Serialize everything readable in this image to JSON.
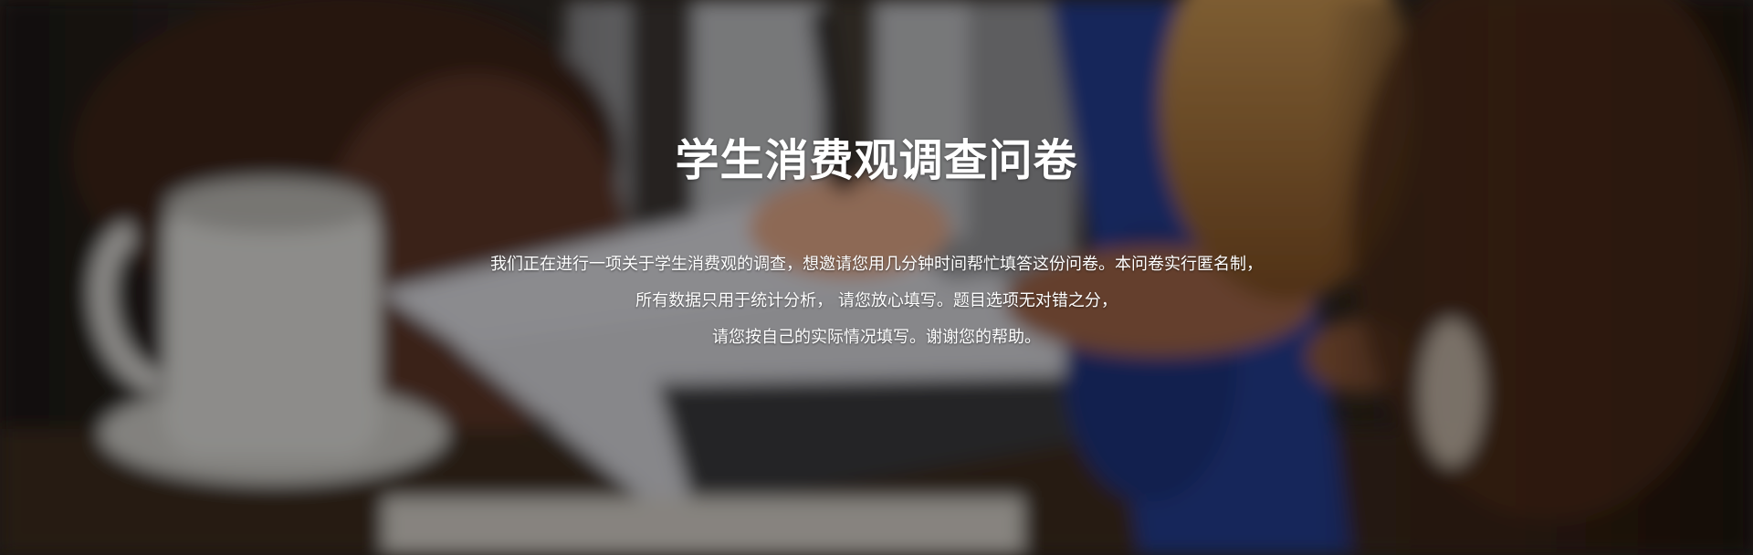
{
  "hero": {
    "title": "学生消费观调查问卷",
    "description_lines": [
      "我们正在进行一项关于学生消费观的调查，想邀请您用几分钟时间帮忙填答这份问卷。本问卷实行匿名制，",
      "所有数据只用于统计分析， 请您放心填写。题目选项无对错之分，",
      "请您按自己的实际情况填写。谢谢您的帮助。"
    ]
  },
  "colors": {
    "text": "#ffffff",
    "overlay": "rgba(0,0,0,0.35)"
  }
}
